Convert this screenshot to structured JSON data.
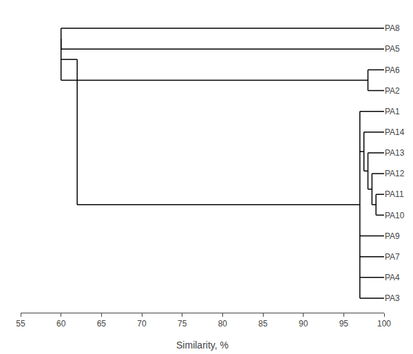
{
  "chart_data": {
    "type": "dendrogram",
    "xlabel": "Similarity, %",
    "xlim": [
      55,
      100
    ],
    "xticks": [
      55,
      60,
      65,
      70,
      75,
      80,
      85,
      90,
      95,
      100
    ],
    "labels": [
      "PA8",
      "PA5",
      "PA6",
      "PA2",
      "PA1",
      "PA14",
      "PA13",
      "PA12",
      "PA11",
      "PA10",
      "PA9",
      "PA7",
      "PA4",
      "PA3"
    ],
    "tree": {
      "similarity": 62.0,
      "children": [
        {
          "similarity": 60.0,
          "children": [
            {
              "similarity": 60.0,
              "children": [
                "PA8",
                "PA5"
              ]
            },
            {
              "similarity": 98.0,
              "children": [
                "PA6",
                "PA2"
              ]
            }
          ]
        },
        {
          "similarity": 97.0,
          "children": [
            "PA1",
            {
              "similarity": 97.5,
              "children": [
                "PA14",
                {
                  "similarity": 98.0,
                  "children": [
                    "PA13",
                    {
                      "similarity": 98.5,
                      "children": [
                        "PA12",
                        {
                          "similarity": 99.0,
                          "children": [
                            "PA11",
                            "PA10"
                          ]
                        }
                      ]
                    }
                  ]
                }
              ]
            },
            "PA9",
            "PA7",
            "PA4",
            "PA3"
          ]
        }
      ]
    },
    "color": "black",
    "grid": false
  }
}
